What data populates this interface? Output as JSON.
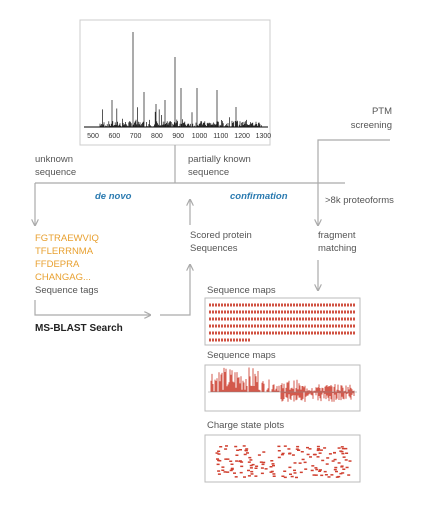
{
  "spectrum": {
    "axis_labels": [
      "500",
      "600",
      "700",
      "800",
      "900",
      "1000",
      "1100",
      "1200",
      "1300"
    ]
  },
  "branches": {
    "unknown": [
      "unknown",
      "sequence"
    ],
    "partial": [
      "partially known",
      "sequence"
    ],
    "ptm": [
      "PTM",
      "screening"
    ]
  },
  "methods": {
    "de_novo": "de novo",
    "confirmation": "confirmation",
    "proteoforms": ">8k proteoforms"
  },
  "tags": [
    "FGTRAEWVIQ",
    "TFLERRNMA",
    "FFDEPRA",
    "CHANGAG...",
    "Sequence tags"
  ],
  "scored": [
    "Scored protein",
    "Sequences"
  ],
  "fragment": [
    "fragment",
    "matching"
  ],
  "search": "MS-BLAST Search",
  "panels": [
    "Sequence maps",
    "Sequence maps",
    "Charge state plots"
  ]
}
